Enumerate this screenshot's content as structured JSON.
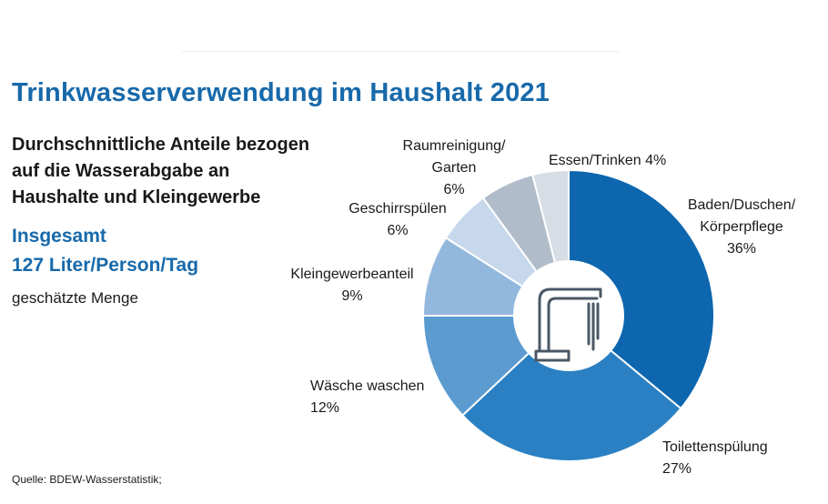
{
  "title": "Trinkwasserverwendung im Haushalt 2021",
  "subtitle_lines": [
    "Durchschnittliche Anteile bezogen",
    "auf die Wasserabgabe an",
    "Haushalte und Kleingewerbe"
  ],
  "total_lines": [
    "Insgesamt",
    "127 Liter/Person/Tag"
  ],
  "note": "geschätzte Menge",
  "source": "Quelle: BDEW-Wasserstatistik;",
  "icon": "faucet-icon",
  "chart_data": {
    "type": "pie",
    "style": "donut",
    "categories": [
      "Baden/Duschen/Körperpflege",
      "Toilettenspülung",
      "Wäsche waschen",
      "Kleingewerbeanteil",
      "Geschirrspülen",
      "Raumreinigung/Garten",
      "Essen/Trinken"
    ],
    "values": [
      36,
      27,
      12,
      9,
      6,
      6,
      4
    ],
    "unit": "%",
    "colors": [
      "#0d66ae",
      "#2a80c2",
      "#5b9bd0",
      "#93b8de",
      "#c7d8ec",
      "#b0bcc9",
      "#d6dde5"
    ],
    "labels": [
      [
        "Baden/Duschen/",
        "Körperpflege",
        "36%"
      ],
      [
        "Toilettenspülung",
        "27%"
      ],
      [
        "Wäsche waschen",
        "12%"
      ],
      [
        "Kleingewerbeanteil",
        "9%"
      ],
      [
        "Geschirrspülen",
        "6%"
      ],
      [
        "Raumreinigung/",
        "Garten",
        "6%"
      ],
      [
        "Essen/Trinken 4%"
      ]
    ]
  }
}
